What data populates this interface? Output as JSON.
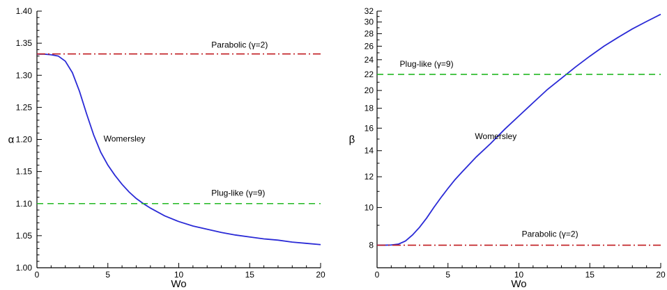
{
  "chart_data": [
    {
      "type": "line",
      "xlabel": "Wo",
      "ylabel": "α",
      "xlim": [
        0,
        20
      ],
      "ylim": [
        1.0,
        1.4
      ],
      "x_ticks": [
        "0",
        "5",
        "10",
        "15",
        "20"
      ],
      "y_ticks": [
        "1.00",
        "1.05",
        "1.10",
        "1.15",
        "1.20",
        "1.25",
        "1.30",
        "1.35",
        "1.40"
      ],
      "y_scale": "linear",
      "grid": false,
      "series": [
        {
          "name": "Womersley",
          "color": "#2a2ad6",
          "style": "solid",
          "x": [
            0,
            0.5,
            1,
            1.5,
            2,
            2.5,
            3,
            3.5,
            4,
            4.5,
            5,
            5.5,
            6,
            6.5,
            7,
            7.5,
            8,
            9,
            10,
            11,
            12,
            13,
            14,
            15,
            16,
            17,
            18,
            19,
            20
          ],
          "y": [
            1.333,
            1.333,
            1.332,
            1.33,
            1.322,
            1.304,
            1.275,
            1.24,
            1.207,
            1.18,
            1.16,
            1.144,
            1.13,
            1.118,
            1.108,
            1.1,
            1.093,
            1.081,
            1.072,
            1.065,
            1.06,
            1.055,
            1.051,
            1.048,
            1.045,
            1.043,
            1.04,
            1.038,
            1.036
          ]
        },
        {
          "name": "Parabolic (γ=2)",
          "color": "#c0191e",
          "style": "dashdot",
          "x": [
            0,
            20
          ],
          "y": [
            1.3333,
            1.3333
          ]
        },
        {
          "name": "Plug-like (γ=9)",
          "color": "#22b822",
          "style": "dashed",
          "x": [
            0,
            20
          ],
          "y": [
            1.1,
            1.1
          ]
        }
      ],
      "annotations": [
        {
          "text": "Parabolic (γ=2)",
          "x": 12.3,
          "y": 1.343
        },
        {
          "text": "Womersley",
          "x": 4.7,
          "y": 1.197
        },
        {
          "text": "Plug-like (γ=9)",
          "x": 12.3,
          "y": 1.112
        }
      ]
    },
    {
      "type": "line",
      "xlabel": "Wo",
      "ylabel": "β",
      "xlim": [
        0,
        20
      ],
      "ylim": [
        7,
        32
      ],
      "y_scale": "log",
      "x_ticks": [
        "0",
        "5",
        "10",
        "15",
        "20"
      ],
      "y_ticks": [
        "8",
        "10",
        "12",
        "14",
        "16",
        "18",
        "20",
        "22",
        "24",
        "26",
        "28",
        "30",
        "32"
      ],
      "grid": false,
      "series": [
        {
          "name": "Womersley",
          "color": "#2a2ad6",
          "style": "solid",
          "x": [
            0,
            0.5,
            1,
            1.5,
            2,
            2.5,
            3,
            3.5,
            4,
            4.5,
            5,
            5.5,
            6,
            7,
            8,
            9,
            10,
            11,
            12,
            13,
            14,
            15,
            16,
            17,
            18,
            19,
            20
          ],
          "y": [
            8.0,
            8.0,
            8.01,
            8.05,
            8.2,
            8.5,
            8.9,
            9.4,
            10.0,
            10.6,
            11.2,
            11.8,
            12.35,
            13.5,
            14.6,
            15.9,
            17.2,
            18.6,
            20.1,
            21.5,
            23.0,
            24.5,
            26.0,
            27.4,
            28.8,
            30.1,
            31.4
          ]
        },
        {
          "name": "Plug-like (γ=9)",
          "color": "#22b822",
          "style": "dashed",
          "x": [
            0,
            20
          ],
          "y": [
            22,
            22
          ]
        },
        {
          "name": "Parabolic (γ=2)",
          "color": "#c0191e",
          "style": "dashdot",
          "x": [
            0,
            20
          ],
          "y": [
            8,
            8
          ]
        }
      ],
      "annotations": [
        {
          "text": "Plug-like (γ=9)",
          "x": 1.6,
          "y": 23.0
        },
        {
          "text": "Womersley",
          "x": 6.9,
          "y": 15.0
        },
        {
          "text": "Parabolic (γ=2)",
          "x": 10.2,
          "y": 8.4
        }
      ]
    }
  ]
}
